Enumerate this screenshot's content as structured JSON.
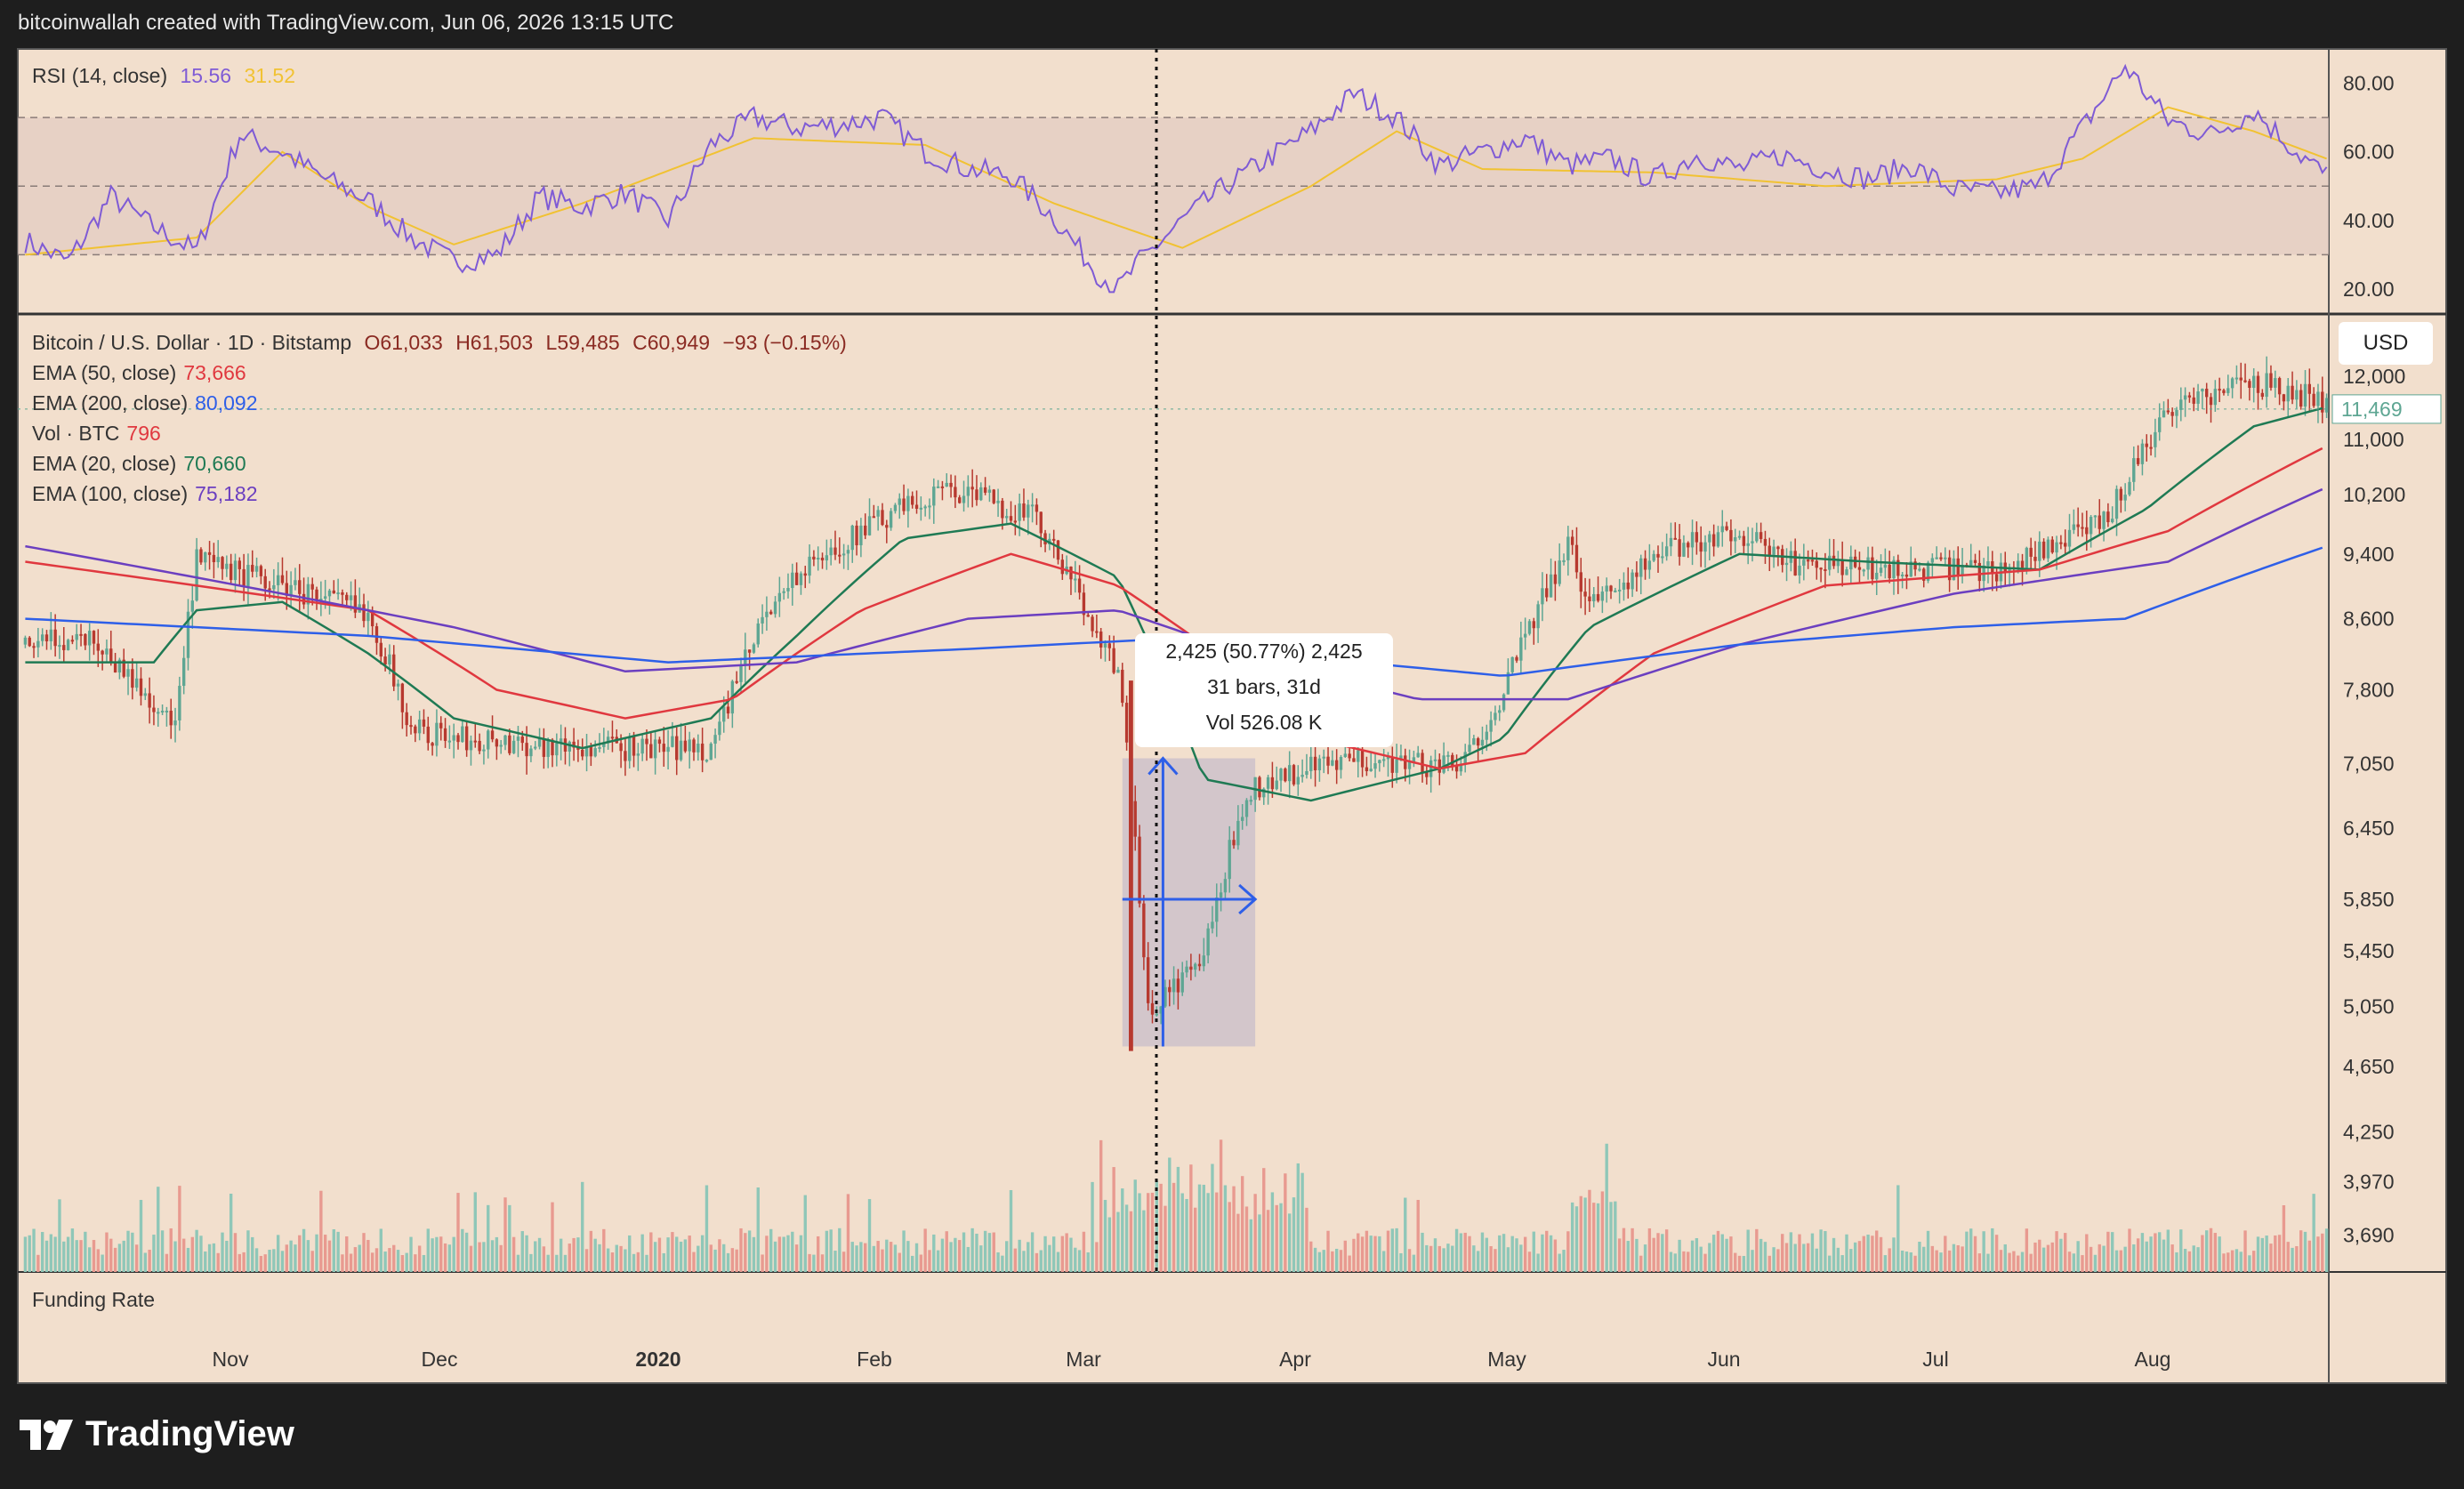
{
  "header": "bitcoinwallah created with TradingView.com, Jun 06, 2026 13:15 UTC",
  "colors": {
    "bg": "#f2dfcd",
    "up": "#5ea693",
    "down": "#b7392f",
    "ema50": "#e0383f",
    "ema200": "#2e5fe8",
    "ema20": "#1f7a54",
    "ema100": "#6b3fc0",
    "rsi": "#7f5bd5",
    "rsi_ma": "#f1c232"
  },
  "rsi_legend": {
    "label": "RSI (14, close)",
    "v1": "15.56",
    "v2": "31.52"
  },
  "main_legend": {
    "symbol": "Bitcoin / U.S. Dollar · 1D · Bitstamp",
    "ohlc": {
      "o": "O61,033",
      "h": "H61,503",
      "l": "L59,485",
      "c": "C60,949",
      "chg": "−93 (−0.15%)"
    },
    "rows": [
      {
        "label": "EMA (50, close)",
        "value": "73,666",
        "color": "#e0383f"
      },
      {
        "label": "EMA (200, close)",
        "value": "80,092",
        "color": "#2e5fe8"
      },
      {
        "label": "Vol · BTC",
        "value": "796",
        "color": "#e0383f"
      },
      {
        "label": "EMA (20, close)",
        "value": "70,660",
        "color": "#1f7a54"
      },
      {
        "label": "EMA (100, close)",
        "value": "75,182",
        "color": "#6b3fc0"
      }
    ]
  },
  "currency": "USD",
  "funding_label": "Funding Rate",
  "measure": {
    "line1": "2,425 (50.77%) 2,425",
    "line2": "31 bars, 31d",
    "line3": "Vol 526.08 K"
  },
  "logo": "TradingView",
  "chart_data": [
    {
      "type": "line",
      "title": "RSI (14, close)",
      "y_ticks": [
        "80.00",
        "60.00",
        "40.00",
        "20.00"
      ],
      "ylim": [
        13,
        90
      ],
      "bands": [
        30,
        50,
        70
      ],
      "series": [
        {
          "name": "RSI",
          "points": [
            [
              0,
              34
            ],
            [
              10,
              28
            ],
            [
              20,
              47
            ],
            [
              30,
              38
            ],
            [
              40,
              31
            ],
            [
              50,
              65
            ],
            [
              60,
              60
            ],
            [
              70,
              52
            ],
            [
              80,
              46
            ],
            [
              90,
              35
            ],
            [
              100,
              28
            ],
            [
              110,
              30
            ],
            [
              120,
              47
            ],
            [
              130,
              44
            ],
            [
              140,
              48
            ],
            [
              150,
              40
            ],
            [
              160,
              62
            ],
            [
              170,
              70
            ],
            [
              180,
              67
            ],
            [
              190,
              68
            ],
            [
              200,
              70
            ],
            [
              210,
              60
            ],
            [
              220,
              55
            ],
            [
              230,
              53
            ],
            [
              240,
              41
            ],
            [
              250,
              25
            ],
            [
              255,
              20
            ],
            [
              260,
              28
            ],
            [
              270,
              40
            ],
            [
              280,
              50
            ],
            [
              290,
              58
            ],
            [
              300,
              66
            ],
            [
              310,
              77
            ],
            [
              320,
              70
            ],
            [
              330,
              56
            ],
            [
              340,
              60
            ],
            [
              350,
              64
            ],
            [
              360,
              56
            ],
            [
              370,
              58
            ],
            [
              380,
              52
            ],
            [
              390,
              59
            ],
            [
              400,
              55
            ],
            [
              410,
              59
            ],
            [
              420,
              55
            ],
            [
              430,
              52
            ],
            [
              440,
              56
            ],
            [
              450,
              49
            ],
            [
              460,
              48
            ],
            [
              470,
              50
            ],
            [
              480,
              67
            ],
            [
              490,
              85
            ],
            [
              500,
              69
            ],
            [
              510,
              65
            ],
            [
              520,
              72
            ],
            [
              530,
              60
            ],
            [
              537,
              53
            ]
          ]
        },
        {
          "name": "RSI MA",
          "points": [
            [
              0,
              30
            ],
            [
              40,
              35
            ],
            [
              60,
              60
            ],
            [
              80,
              44
            ],
            [
              100,
              33
            ],
            [
              130,
              45
            ],
            [
              170,
              64
            ],
            [
              210,
              62
            ],
            [
              240,
              45
            ],
            [
              270,
              32
            ],
            [
              300,
              50
            ],
            [
              320,
              66
            ],
            [
              340,
              55
            ],
            [
              380,
              54
            ],
            [
              420,
              50
            ],
            [
              460,
              52
            ],
            [
              480,
              58
            ],
            [
              500,
              73
            ],
            [
              520,
              66
            ],
            [
              537,
              58
            ]
          ]
        }
      ]
    },
    {
      "type": "candlestick",
      "title": "Bitcoin / U.S. Dollar · 1D · Bitstamp",
      "x_ticks": [
        "Nov",
        "Dec",
        "2020",
        "Feb",
        "Mar",
        "Apr",
        "May",
        "Jun",
        "Jul",
        "Aug"
      ],
      "y_ticks": [
        "12,000",
        "11,000",
        "10,200",
        "9,400",
        "8,600",
        "7,800",
        "7,050",
        "6,450",
        "5,850",
        "5,450",
        "5,050",
        "4,650",
        "4,250",
        "3,970",
        "3,690"
      ],
      "last_price": "11,469",
      "ylim": [
        3550,
        12800
      ],
      "key_closes": [
        [
          0,
          8300
        ],
        [
          15,
          8400
        ],
        [
          35,
          7400
        ],
        [
          40,
          9300
        ],
        [
          60,
          9000
        ],
        [
          80,
          8700
        ],
        [
          90,
          7400
        ],
        [
          100,
          7300
        ],
        [
          130,
          7200
        ],
        [
          160,
          7200
        ],
        [
          175,
          8900
        ],
        [
          195,
          9700
        ],
        [
          215,
          10300
        ],
        [
          235,
          9900
        ],
        [
          255,
          8000
        ],
        [
          262,
          5000
        ],
        [
          275,
          5400
        ],
        [
          285,
          6800
        ],
        [
          300,
          7000
        ],
        [
          315,
          7100
        ],
        [
          335,
          7000
        ],
        [
          345,
          7800
        ],
        [
          360,
          9500
        ],
        [
          365,
          8800
        ],
        [
          385,
          9500
        ],
        [
          400,
          9700
        ],
        [
          410,
          9300
        ],
        [
          430,
          9200
        ],
        [
          460,
          9200
        ],
        [
          485,
          9800
        ],
        [
          500,
          11500
        ],
        [
          520,
          11900
        ],
        [
          537,
          11600
        ]
      ],
      "series": [
        {
          "name": "EMA 20",
          "points": [
            [
              0,
              8100
            ],
            [
              30,
              8100
            ],
            [
              40,
              8700
            ],
            [
              60,
              8800
            ],
            [
              80,
              8200
            ],
            [
              100,
              7500
            ],
            [
              130,
              7200
            ],
            [
              160,
              7500
            ],
            [
              180,
              8400
            ],
            [
              205,
              9600
            ],
            [
              230,
              9800
            ],
            [
              255,
              9100
            ],
            [
              275,
              6900
            ],
            [
              300,
              6700
            ],
            [
              330,
              7000
            ],
            [
              345,
              7300
            ],
            [
              365,
              8500
            ],
            [
              400,
              9400
            ],
            [
              430,
              9300
            ],
            [
              470,
              9200
            ],
            [
              495,
              10000
            ],
            [
              520,
              11200
            ],
            [
              537,
              11500
            ]
          ]
        },
        {
          "name": "EMA 50",
          "points": [
            [
              0,
              9300
            ],
            [
              40,
              9000
            ],
            [
              80,
              8700
            ],
            [
              110,
              7800
            ],
            [
              140,
              7500
            ],
            [
              165,
              7700
            ],
            [
              195,
              8700
            ],
            [
              230,
              9400
            ],
            [
              255,
              9000
            ],
            [
              275,
              8300
            ],
            [
              300,
              7300
            ],
            [
              330,
              7000
            ],
            [
              350,
              7150
            ],
            [
              380,
              8200
            ],
            [
              420,
              9000
            ],
            [
              470,
              9200
            ],
            [
              500,
              9700
            ],
            [
              537,
              10900
            ]
          ]
        },
        {
          "name": "EMA 100",
          "points": [
            [
              0,
              9500
            ],
            [
              50,
              9000
            ],
            [
              100,
              8500
            ],
            [
              140,
              8000
            ],
            [
              180,
              8100
            ],
            [
              220,
              8600
            ],
            [
              255,
              8700
            ],
            [
              290,
              8100
            ],
            [
              325,
              7700
            ],
            [
              360,
              7700
            ],
            [
              400,
              8300
            ],
            [
              450,
              8900
            ],
            [
              500,
              9300
            ],
            [
              537,
              10300
            ]
          ]
        },
        {
          "name": "EMA 200",
          "points": [
            [
              0,
              8600
            ],
            [
              80,
              8400
            ],
            [
              150,
              8100
            ],
            [
              220,
              8250
            ],
            [
              260,
              8350
            ],
            [
              300,
              8150
            ],
            [
              345,
              7950
            ],
            [
              400,
              8300
            ],
            [
              450,
              8500
            ],
            [
              490,
              8600
            ],
            [
              537,
              9500
            ]
          ]
        }
      ]
    }
  ]
}
